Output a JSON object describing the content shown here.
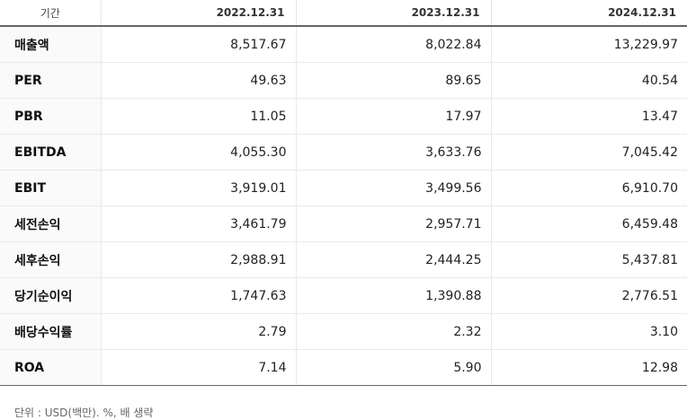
{
  "table": {
    "header": {
      "period_label": "기간",
      "periods": [
        "2022.12.31",
        "2023.12.31",
        "2024.12.31"
      ]
    },
    "rows": [
      {
        "label": "매출액",
        "values": [
          "8,517.67",
          "8,022.84",
          "13,229.97"
        ]
      },
      {
        "label": "PER",
        "values": [
          "49.63",
          "89.65",
          "40.54"
        ]
      },
      {
        "label": "PBR",
        "values": [
          "11.05",
          "17.97",
          "13.47"
        ]
      },
      {
        "label": "EBITDA",
        "values": [
          "4,055.30",
          "3,633.76",
          "7,045.42"
        ]
      },
      {
        "label": "EBIT",
        "values": [
          "3,919.01",
          "3,499.56",
          "6,910.70"
        ]
      },
      {
        "label": "세전손익",
        "values": [
          "3,461.79",
          "2,957.71",
          "6,459.48"
        ]
      },
      {
        "label": "세후손익",
        "values": [
          "2,988.91",
          "2,444.25",
          "5,437.81"
        ]
      },
      {
        "label": "당기순이익",
        "values": [
          "1,747.63",
          "1,390.88",
          "2,776.51"
        ]
      },
      {
        "label": "배당수익률",
        "values": [
          "2.79",
          "2.32",
          "3.10"
        ]
      },
      {
        "label": "ROA",
        "values": [
          "7.14",
          "5.90",
          "12.98"
        ]
      }
    ]
  },
  "footnote": "단위 : USD(백만). %, 배 생략"
}
